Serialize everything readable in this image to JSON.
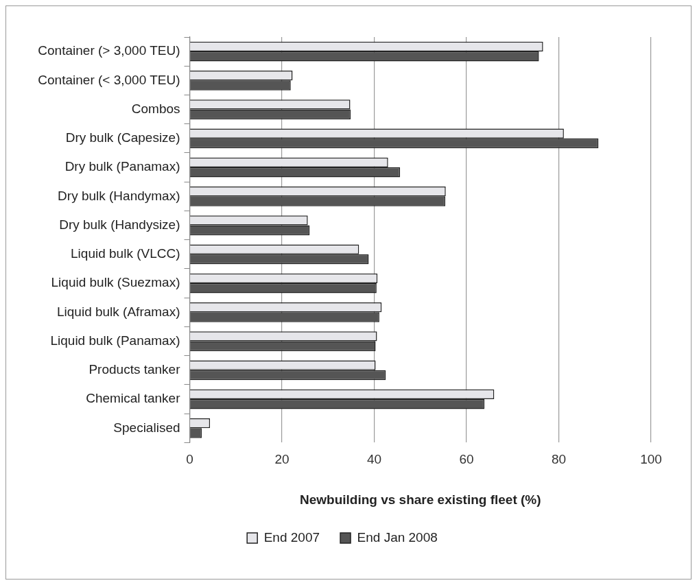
{
  "chart_data": {
    "type": "bar",
    "orientation": "horizontal",
    "xlabel": "Newbuilding vs share existing fleet (%)",
    "categories": [
      "Container (> 3,000 TEU)",
      "Container (< 3,000 TEU)",
      "Combos",
      "Dry bulk (Capesize)",
      "Dry bulk (Panamax)",
      "Dry bulk (Handymax)",
      "Dry bulk (Handysize)",
      "Liquid bulk (VLCC)",
      "Liquid bulk (Suezmax)",
      "Liquid bulk (Aframax)",
      "Liquid bulk (Panamax)",
      "Products tanker",
      "Chemical tanker",
      "Specialised"
    ],
    "series": [
      {
        "name": "End 2007",
        "color": "#e6e6ea",
        "values": [
          76.6,
          22.3,
          34.8,
          81.1,
          43.0,
          55.5,
          25.6,
          36.7,
          40.7,
          41.6,
          40.6,
          40.3,
          66.0,
          4.4
        ]
      },
      {
        "name": "End Jan 2008",
        "color": "#555555",
        "values": [
          75.7,
          21.9,
          34.9,
          88.6,
          45.6,
          55.4,
          26.0,
          38.8,
          40.5,
          41.1,
          40.3,
          42.5,
          63.9,
          2.6
        ]
      }
    ],
    "xlim": [
      0,
      100
    ],
    "xticks": [
      0,
      20,
      40,
      60,
      80,
      100
    ],
    "grid": "x",
    "legend": "bottom"
  }
}
